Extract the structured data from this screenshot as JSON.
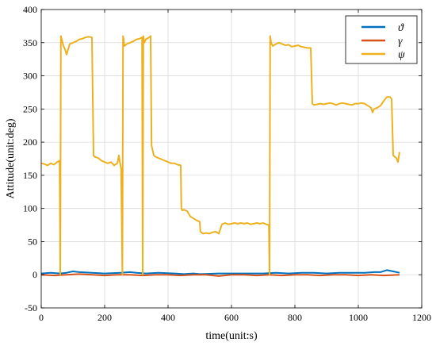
{
  "chart_data": {
    "type": "line",
    "title": "",
    "xlabel": "time(unit:s)",
    "ylabel": "Attitude(unit:deg)",
    "xlim": [
      0,
      1200
    ],
    "ylim": [
      -50,
      400
    ],
    "xticks": [
      0,
      200,
      400,
      600,
      800,
      1000,
      1200
    ],
    "yticks": [
      -50,
      0,
      50,
      100,
      150,
      200,
      250,
      300,
      350,
      400
    ],
    "grid": true,
    "legend_position": "top-right",
    "series": [
      {
        "name": "ϑ",
        "color": "#0072BD",
        "x": [
          0,
          30,
          60,
          80,
          100,
          120,
          160,
          200,
          250,
          280,
          300,
          330,
          370,
          420,
          450,
          480,
          500,
          560,
          600,
          650,
          700,
          740,
          780,
          820,
          860,
          900,
          940,
          980,
          1020,
          1050,
          1070,
          1090,
          1110,
          1130
        ],
        "y": [
          2,
          3,
          2,
          3,
          5,
          4,
          3,
          2,
          3,
          4,
          3,
          2,
          3,
          2,
          1,
          2,
          1,
          2,
          2,
          2,
          2,
          3,
          2,
          3,
          3,
          2,
          3,
          3,
          3,
          4,
          4,
          7,
          5,
          3
        ]
      },
      {
        "name": "γ",
        "color": "#D95319",
        "x": [
          0,
          40,
          80,
          120,
          160,
          200,
          240,
          280,
          320,
          360,
          400,
          440,
          480,
          520,
          560,
          600,
          640,
          680,
          720,
          760,
          800,
          840,
          880,
          920,
          960,
          1000,
          1040,
          1080,
          1130
        ],
        "y": [
          0,
          -1,
          0,
          1,
          0,
          -1,
          0,
          0,
          -1,
          0,
          0,
          -1,
          0,
          0,
          -2,
          0,
          0,
          -1,
          0,
          -1,
          0,
          0,
          -1,
          0,
          0,
          -1,
          0,
          -1,
          0
        ]
      },
      {
        "name": "ψ",
        "color": "#EDB120",
        "x": [
          0,
          10,
          20,
          30,
          40,
          50,
          58,
          60,
          62,
          70,
          75,
          80,
          90,
          100,
          110,
          120,
          130,
          140,
          150,
          160,
          165,
          168,
          180,
          190,
          200,
          210,
          220,
          230,
          240,
          245,
          248,
          252,
          256,
          258,
          260,
          262,
          270,
          280,
          290,
          300,
          310,
          318,
          320,
          322,
          325,
          330,
          340,
          345,
          348,
          355,
          360,
          370,
          380,
          390,
          400,
          410,
          420,
          430,
          440,
          442,
          445,
          450,
          460,
          470,
          480,
          490,
          500,
          502,
          510,
          520,
          530,
          540,
          550,
          560,
          570,
          580,
          590,
          600,
          610,
          620,
          630,
          640,
          650,
          660,
          670,
          680,
          690,
          700,
          710,
          718,
          720,
          722,
          725,
          730,
          740,
          750,
          760,
          770,
          780,
          790,
          800,
          810,
          820,
          830,
          840,
          850,
          855,
          860,
          870,
          880,
          890,
          900,
          910,
          920,
          930,
          940,
          950,
          960,
          970,
          980,
          990,
          1000,
          1010,
          1020,
          1030,
          1040,
          1045,
          1050,
          1060,
          1070,
          1080,
          1090,
          1100,
          1105,
          1110,
          1120,
          1125,
          1130
        ],
        "y": [
          168,
          167,
          165,
          168,
          166,
          170,
          172,
          0,
          360,
          345,
          340,
          332,
          348,
          350,
          352,
          355,
          356,
          358,
          359,
          358,
          180,
          178,
          176,
          172,
          170,
          168,
          170,
          165,
          168,
          180,
          170,
          160,
          0,
          360,
          355,
          345,
          348,
          350,
          352,
          355,
          356,
          358,
          0,
          360,
          350,
          355,
          358,
          360,
          195,
          180,
          178,
          176,
          174,
          172,
          170,
          168,
          168,
          166,
          165,
          100,
          97,
          98,
          96,
          88,
          85,
          82,
          80,
          65,
          62,
          63,
          62,
          64,
          65,
          62,
          76,
          78,
          76,
          77,
          78,
          77,
          78,
          77,
          78,
          76,
          77,
          78,
          77,
          78,
          76,
          75,
          0,
          360,
          350,
          345,
          348,
          350,
          348,
          346,
          347,
          344,
          345,
          346,
          344,
          343,
          342,
          342,
          258,
          256,
          257,
          258,
          257,
          258,
          259,
          258,
          256,
          258,
          259,
          258,
          257,
          256,
          258,
          258,
          259,
          258,
          255,
          252,
          245,
          250,
          252,
          255,
          262,
          268,
          268,
          265,
          180,
          176,
          170,
          185
        ]
      }
    ]
  }
}
